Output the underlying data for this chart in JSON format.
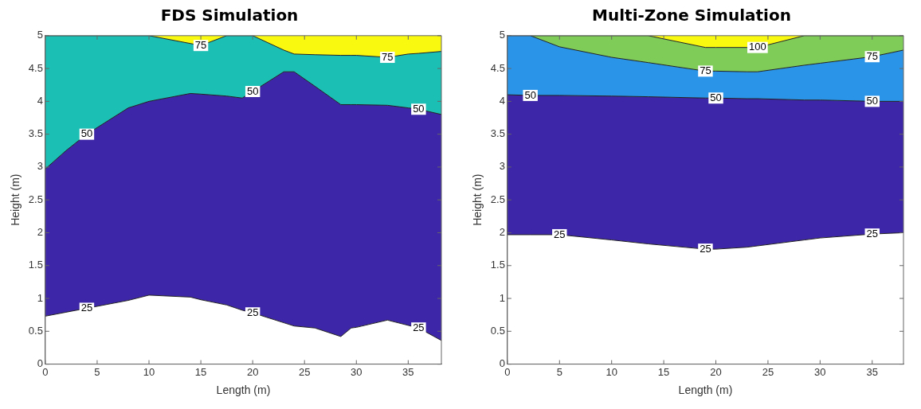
{
  "chart_data": [
    {
      "type": "area",
      "stacked": true,
      "title": "FDS Simulation",
      "xlabel": "Length (m)",
      "ylabel": "Height (m)",
      "x": [
        0,
        2,
        4,
        8,
        10,
        14,
        15,
        17.5,
        19,
        20,
        23,
        24,
        26,
        28.5,
        29.5,
        30,
        33,
        35,
        36,
        38.2
      ],
      "xlim": [
        0,
        38.2
      ],
      "xticks": [
        0,
        5,
        10,
        15,
        20,
        25,
        30,
        35
      ],
      "ylim": [
        0,
        5
      ],
      "yticks": [
        0,
        0.5,
        1,
        1.5,
        2,
        2.5,
        3,
        3.5,
        4,
        4.5,
        5
      ],
      "grid": false,
      "legend": false,
      "series": [
        {
          "color": "#ffffff",
          "values": [
            0.73,
            0.79,
            0.85,
            0.97,
            1.05,
            1.02,
            0.98,
            0.9,
            0.82,
            0.78,
            0.63,
            0.58,
            0.55,
            0.42,
            0.55,
            0.56,
            0.67,
            0.59,
            0.55,
            0.36
          ]
        },
        {
          "color": "#3e26a8",
          "values": [
            2.24,
            2.46,
            2.65,
            2.93,
            2.95,
            3.1,
            3.13,
            3.18,
            3.23,
            3.37,
            3.82,
            3.87,
            3.68,
            3.53,
            3.4,
            3.39,
            3.27,
            3.31,
            3.33,
            3.44
          ]
        },
        {
          "color": "#1bbfb4",
          "values": [
            2.03,
            1.75,
            1.5,
            1.1,
            1.0,
            0.76,
            0.74,
            0.92,
            0.95,
            0.85,
            0.33,
            0.27,
            0.48,
            0.75,
            0.75,
            0.75,
            0.73,
            0.82,
            0.85,
            0.96
          ]
        },
        {
          "color": "#f9f90f",
          "values": [
            0,
            0,
            0,
            0,
            0,
            0.12,
            0.15,
            0,
            0,
            0,
            0.22,
            0.28,
            0.29,
            0.3,
            0.3,
            0.3,
            0.33,
            0.28,
            0.27,
            0.24
          ]
        }
      ],
      "annotations": [
        {
          "text": "75",
          "x": 15,
          "y": 4.85
        },
        {
          "text": "75",
          "x": 33,
          "y": 4.67
        },
        {
          "text": "50",
          "x": 20,
          "y": 4.15
        },
        {
          "text": "50",
          "x": 4,
          "y": 3.5
        },
        {
          "text": "50",
          "x": 36,
          "y": 3.88
        },
        {
          "text": "25",
          "x": 4,
          "y": 0.85
        },
        {
          "text": "25",
          "x": 20,
          "y": 0.78
        },
        {
          "text": "25",
          "x": 36,
          "y": 0.55
        }
      ]
    },
    {
      "type": "area",
      "stacked": true,
      "title": "Multi-Zone Simulation",
      "xlabel": "Length (m)",
      "ylabel": "Height (m)",
      "x": [
        0,
        2.2,
        5,
        10,
        13.5,
        19,
        20,
        23,
        24,
        28.5,
        30,
        35,
        38
      ],
      "xlim": [
        0,
        38
      ],
      "xticks": [
        0,
        5,
        10,
        15,
        20,
        25,
        30,
        35
      ],
      "ylim": [
        0,
        5
      ],
      "yticks": [
        0,
        0.5,
        1,
        1.5,
        2,
        2.5,
        3,
        3.5,
        4,
        4.5,
        5
      ],
      "grid": false,
      "legend": false,
      "series": [
        {
          "color": "#ffffff",
          "values": [
            1.97,
            1.97,
            1.97,
            1.89,
            1.83,
            1.75,
            1.75,
            1.78,
            1.8,
            1.89,
            1.92,
            1.98,
            2.0
          ]
        },
        {
          "color": "#3e26a8",
          "values": [
            2.13,
            2.12,
            2.12,
            2.19,
            2.24,
            2.3,
            2.3,
            2.26,
            2.24,
            2.13,
            2.1,
            2.02,
            2.0
          ]
        },
        {
          "color": "#2994e8",
          "values": [
            0.9,
            0.91,
            0.74,
            0.59,
            0.52,
            0.41,
            0.41,
            0.41,
            0.41,
            0.53,
            0.56,
            0.68,
            0.78
          ]
        },
        {
          "color": "#7fcc58",
          "values": [
            0,
            0,
            0.17,
            0.33,
            0.41,
            0.36,
            0.36,
            0.37,
            0.37,
            0.45,
            0.42,
            0.32,
            0.22
          ]
        },
        {
          "color": "#f9f90f",
          "values": [
            0,
            0,
            0,
            0,
            0,
            0.18,
            0.18,
            0.18,
            0.18,
            0,
            0,
            0,
            0
          ]
        }
      ],
      "annotations": [
        {
          "text": "100",
          "x": 24,
          "y": 4.82
        },
        {
          "text": "75",
          "x": 19,
          "y": 4.46
        },
        {
          "text": "75",
          "x": 35,
          "y": 4.68
        },
        {
          "text": "50",
          "x": 2.2,
          "y": 4.09
        },
        {
          "text": "50",
          "x": 20,
          "y": 4.05
        },
        {
          "text": "50",
          "x": 35,
          "y": 4.0
        },
        {
          "text": "25",
          "x": 5,
          "y": 1.97
        },
        {
          "text": "25",
          "x": 19,
          "y": 1.75
        },
        {
          "text": "25",
          "x": 35,
          "y": 1.98
        }
      ]
    }
  ]
}
